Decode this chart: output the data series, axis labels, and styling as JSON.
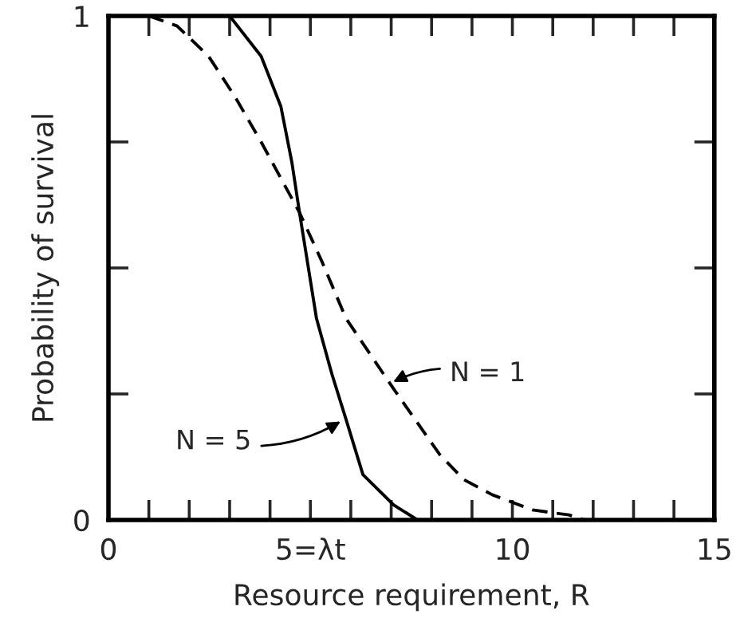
{
  "chart_data": {
    "type": "line",
    "xlabel": "Resource requirement, R",
    "ylabel": "Probability of survival",
    "xlim": [
      0,
      15
    ],
    "ylim": [
      0,
      1
    ],
    "xticks": [
      0,
      {
        "value": 1,
        "label": null
      },
      {
        "value": 2,
        "label": null
      },
      {
        "value": 3,
        "label": null
      },
      {
        "value": 4,
        "label": null
      },
      {
        "value": 5,
        "label": "5=λt"
      },
      {
        "value": 6,
        "label": null
      },
      {
        "value": 7,
        "label": null
      },
      {
        "value": 8,
        "label": null
      },
      {
        "value": 9,
        "label": null
      },
      10,
      {
        "value": 11,
        "label": null
      },
      {
        "value": 12,
        "label": null
      },
      {
        "value": 13,
        "label": null
      },
      {
        "value": 14,
        "label": null
      },
      15
    ],
    "yticks": [
      0,
      {
        "value": 0.25,
        "label": null
      },
      {
        "value": 0.5,
        "label": null
      },
      {
        "value": 0.75,
        "label": null
      },
      1
    ],
    "grid": false,
    "legend": false,
    "series": [
      {
        "color": "#000000",
        "line_style": "dashed",
        "x": [
          1.0,
          1.7,
          2.48,
          3.13,
          3.78,
          4.73,
          5.3,
          5.88,
          7.06,
          8.2,
          8.8,
          9.5,
          10.5,
          11.4,
          11.8
        ],
        "values": [
          1.0,
          0.98,
          0.92,
          0.84,
          0.75,
          0.61,
          0.51,
          0.4,
          0.26,
          0.13,
          0.08,
          0.05,
          0.02,
          0.01,
          0.0
        ]
      },
      {
        "color": "#000000",
        "line_style": "solid",
        "x": [
          3.0,
          3.78,
          4.27,
          4.54,
          4.73,
          5.15,
          5.53,
          5.88,
          6.3,
          7.06,
          7.65
        ],
        "values": [
          1.0,
          0.92,
          0.82,
          0.71,
          0.61,
          0.4,
          0.29,
          0.2,
          0.09,
          0.03,
          0.0
        ]
      }
    ],
    "annotations": [
      {
        "text": "N = 1",
        "x": 6.95,
        "y": 0.27
      },
      {
        "text": "N = 5",
        "x": 5.84,
        "y": 0.2
      }
    ]
  }
}
